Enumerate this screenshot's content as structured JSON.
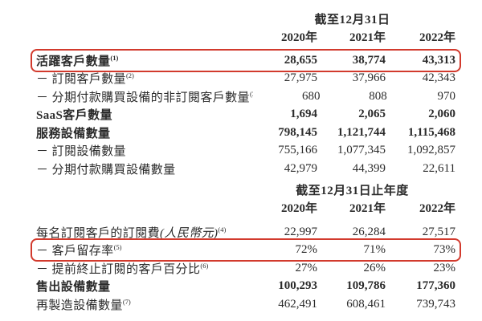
{
  "page": {
    "background": "#ffffff",
    "text_color": "#2b2b2b",
    "highlight_color": "#d23a2d"
  },
  "tables": [
    {
      "period_header": "截至12月31日",
      "columns": [
        "2020年",
        "2021年",
        "2022年"
      ],
      "rows": [
        {
          "label": "活躍客戶數量",
          "sup": "(1)",
          "values": [
            "28,655",
            "38,774",
            "43,313"
          ],
          "bold": true,
          "highlighted": true
        },
        {
          "label": "－ 訂閱客戶數量",
          "sup": "(2)",
          "values": [
            "27,975",
            "37,966",
            "42,343"
          ]
        },
        {
          "label": "－ 分期付款購買設備的非訂閱客戶數量",
          "sup": "(3)",
          "values": [
            "680",
            "808",
            "970"
          ]
        },
        {
          "label": "SaaS客戶數量",
          "values": [
            "1,694",
            "2,065",
            "2,060"
          ],
          "bold": true
        },
        {
          "label": "服務設備數量",
          "values": [
            "798,145",
            "1,121,744",
            "1,115,468"
          ],
          "bold": true
        },
        {
          "label": "－ 訂閱設備數量",
          "values": [
            "755,166",
            "1,077,345",
            "1,092,857"
          ]
        },
        {
          "label": "－ 分期付款購買設備數量",
          "values": [
            "42,979",
            "44,399",
            "22,611"
          ]
        }
      ]
    },
    {
      "period_header": "截至12月31日止年度",
      "columns": [
        "2020年",
        "2021年",
        "2022年"
      ],
      "rows": [
        {
          "label": "每名訂閱客戶的訂閱費",
          "label_italic": "(人民幣元)",
          "sup": "(4)",
          "values": [
            "22,997",
            "26,284",
            "27,517"
          ]
        },
        {
          "label": "－ 客戶留存率",
          "sup": "(5)",
          "values": [
            "72%",
            "71%",
            "73%"
          ],
          "highlighted": true
        },
        {
          "label": "－ 提前終止訂閱的客戶百分比",
          "sup": "(6)",
          "values": [
            "27%",
            "26%",
            "23%"
          ]
        },
        {
          "label": "售出設備數量",
          "values": [
            "100,293",
            "109,786",
            "177,360"
          ],
          "bold": true
        },
        {
          "label": "再製造設備數量",
          "sup": "(7)",
          "values": [
            "462,491",
            "608,461",
            "739,743"
          ]
        }
      ]
    }
  ]
}
